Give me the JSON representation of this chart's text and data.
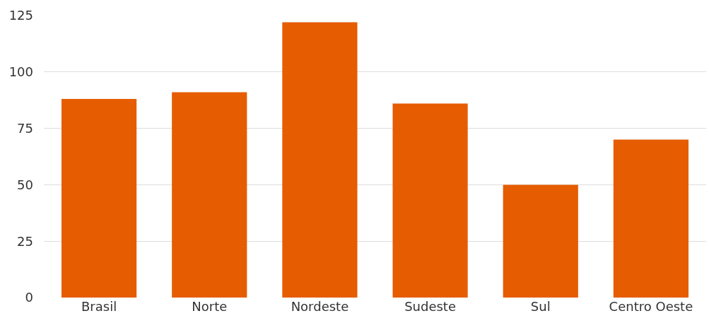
{
  "chart_data": {
    "type": "bar",
    "categories": [
      "Brasil",
      "Norte",
      "Nordeste",
      "Sudeste",
      "Sul",
      "Centro Oeste"
    ],
    "values": [
      88,
      91,
      122,
      86,
      50,
      70
    ],
    "color": "#e65c00",
    "ylim": [
      0,
      125
    ],
    "yticks": [
      0,
      25,
      50,
      75,
      100,
      125
    ],
    "grid": "y"
  }
}
